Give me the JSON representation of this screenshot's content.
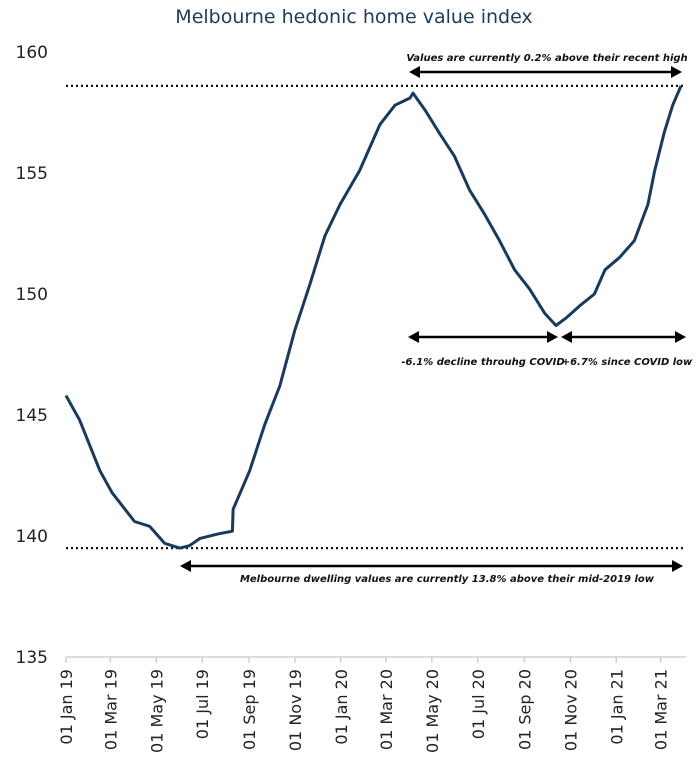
{
  "chart_data": {
    "type": "line",
    "title": "Melbourne hedonic home value index",
    "xlabel": "",
    "ylabel": "",
    "ylim": [
      135,
      160
    ],
    "yticks": [
      135,
      140,
      145,
      150,
      155,
      160
    ],
    "xlim": [
      "2019-01-01",
      "2021-03-28"
    ],
    "xticks": [
      "01 Jan 19",
      "01 Mar 19",
      "01 May 19",
      "01 Jul 19",
      "01 Sep 19",
      "01 Nov 19",
      "01 Jan 20",
      "01 Mar 20",
      "01 May 20",
      "01 Jul 20",
      "01 Sep 20",
      "01 Nov 20",
      "01 Jan 21",
      "01 Mar 21"
    ],
    "xtick_dates": [
      "2019-01-01",
      "2019-03-01",
      "2019-05-01",
      "2019-07-01",
      "2019-09-01",
      "2019-11-01",
      "2020-01-01",
      "2020-03-01",
      "2020-05-01",
      "2020-07-01",
      "2020-09-01",
      "2020-11-01",
      "2021-01-01",
      "2021-03-01"
    ],
    "grid": false,
    "line_color": "#1a3a5c",
    "series": [
      {
        "x": [
          "2019-01-01",
          "2019-01-19",
          "2019-02-15",
          "2019-03-03",
          "2019-04-02",
          "2019-04-22",
          "2019-05-12",
          "2019-06-01",
          "2019-06-14",
          "2019-06-28",
          "2019-07-24",
          "2019-08-10",
          "2019-08-11",
          "2019-09-02",
          "2019-09-22",
          "2019-10-12",
          "2019-11-01",
          "2019-11-21",
          "2019-12-11",
          "2019-12-31",
          "2020-01-26",
          "2020-02-22",
          "2020-03-13",
          "2020-04-02",
          "2020-04-06",
          "2020-04-22",
          "2020-05-12",
          "2020-05-31",
          "2020-06-20",
          "2020-07-10",
          "2020-07-30",
          "2020-08-19",
          "2020-09-08",
          "2020-09-28",
          "2020-10-13",
          "2020-10-26",
          "2020-11-13",
          "2020-12-03",
          "2020-12-17",
          "2021-01-05",
          "2021-01-25",
          "2021-02-12",
          "2021-02-21",
          "2021-03-06",
          "2021-03-17",
          "2021-03-28"
        ],
        "values": [
          145.8,
          144.8,
          142.7,
          141.8,
          140.6,
          140.4,
          139.7,
          139.5,
          139.6,
          139.9,
          140.1,
          140.2,
          141.1,
          142.7,
          144.6,
          146.2,
          148.5,
          150.4,
          152.4,
          153.7,
          155.1,
          157.0,
          157.8,
          158.1,
          158.3,
          157.6,
          156.6,
          155.7,
          154.3,
          153.3,
          152.2,
          151.0,
          150.2,
          149.2,
          148.7,
          149.0,
          149.5,
          150.0,
          151.0,
          151.5,
          152.2,
          153.7,
          155.1,
          156.7,
          157.8,
          158.6
        ]
      }
    ],
    "reference_lines": [
      158.6,
      139.5
    ],
    "annotations": {
      "recent_high": "Values are currently 0.2% above their recent high",
      "covid_decline": "-6.1% decline throuhg COVID",
      "since_low": "+6.7% since COVID low",
      "mid2019": "Melbourne dwelling values are currently 13.8% above their mid-2019 low"
    }
  }
}
